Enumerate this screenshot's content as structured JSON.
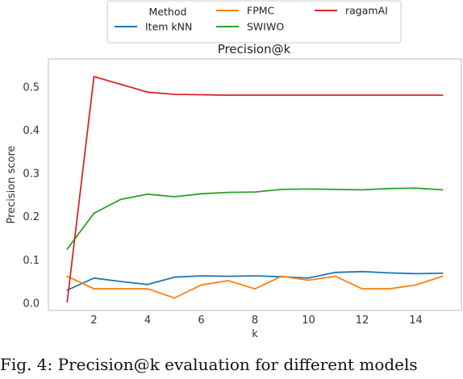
{
  "chart_data": {
    "type": "line",
    "title": "Precision@k",
    "xlabel": "k",
    "ylabel": "Precision score",
    "x": [
      1,
      2,
      3,
      4,
      5,
      6,
      7,
      8,
      9,
      10,
      11,
      12,
      13,
      14,
      15
    ],
    "xlim": [
      0.3,
      15.7
    ],
    "ylim": [
      -0.017,
      0.565
    ],
    "xticks": [
      2,
      4,
      6,
      8,
      10,
      12,
      14
    ],
    "yticks": [
      0.0,
      0.1,
      0.2,
      0.3,
      0.4,
      0.5
    ],
    "xtick_labels": [
      "2",
      "4",
      "6",
      "8",
      "10",
      "12",
      "14"
    ],
    "ytick_labels": [
      "0.0",
      "0.1",
      "0.2",
      "0.3",
      "0.4",
      "0.5"
    ],
    "grid": false,
    "legend": {
      "title": "Method",
      "placement": "above-plot",
      "columns": 3
    },
    "series": [
      {
        "name": "Item kNN",
        "color": "#1f77b4",
        "values": [
          0.03,
          0.058,
          0.05,
          0.043,
          0.06,
          0.063,
          0.062,
          0.063,
          0.061,
          0.058,
          0.071,
          0.073,
          0.07,
          0.068,
          0.069
        ]
      },
      {
        "name": "SWIWO",
        "color": "#2ca02c",
        "values": [
          0.125,
          0.208,
          0.24,
          0.252,
          0.246,
          0.253,
          0.256,
          0.257,
          0.263,
          0.264,
          0.263,
          0.262,
          0.265,
          0.266,
          0.262
        ]
      },
      {
        "name": "FPMC",
        "color": "#ff7f0e",
        "values": [
          0.062,
          0.033,
          0.033,
          0.033,
          0.012,
          0.042,
          0.052,
          0.033,
          0.062,
          0.053,
          0.062,
          0.033,
          0.033,
          0.042,
          0.062
        ]
      },
      {
        "name": "ragamAI",
        "color": "#d62728",
        "values": [
          0.003,
          0.524,
          0.506,
          0.488,
          0.483,
          0.482,
          0.481,
          0.481,
          0.481,
          0.481,
          0.481,
          0.481,
          0.481,
          0.481,
          0.481
        ]
      }
    ]
  },
  "caption": "Fig. 4: Precision@k evaluation for different models"
}
